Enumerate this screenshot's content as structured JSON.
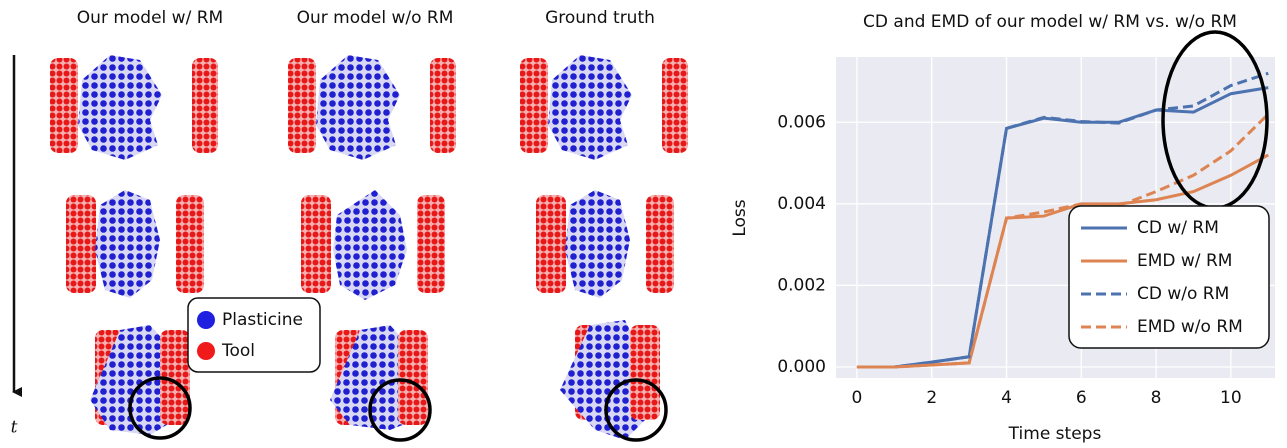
{
  "figure": {
    "columns": [
      "Our model w/ RM",
      "Our model w/o RM",
      "Ground truth"
    ],
    "legend": [
      {
        "name": "Plasticine",
        "color": "#1f1fe0"
      },
      {
        "name": "Tool",
        "color": "#f01a1a"
      }
    ],
    "time_label": "t"
  },
  "chart_data": {
    "type": "line",
    "title": "CD and EMD of our model w/ RM vs. w/o RM",
    "x_label": "Time steps",
    "y_label": "Loss",
    "x": [
      0,
      1,
      2,
      3,
      4,
      5,
      6,
      7,
      8,
      9,
      10,
      11
    ],
    "series": [
      {
        "name": "CD w/ RM",
        "color": "#4c72b0",
        "dashed": false,
        "values": [
          0,
          0,
          0.00012,
          0.00025,
          0.00585,
          0.0061,
          0.006,
          0.006,
          0.0063,
          0.00625,
          0.0067,
          0.00685
        ]
      },
      {
        "name": "EMD w/ RM",
        "color": "#dd8452",
        "dashed": false,
        "values": [
          0,
          0,
          5e-05,
          0.0001,
          0.00365,
          0.0037,
          0.004,
          0.004,
          0.0041,
          0.0043,
          0.0047,
          0.0052
        ]
      },
      {
        "name": "CD w/o RM",
        "color": "#4c72b0",
        "dashed": true,
        "values": [
          0,
          0,
          0.00012,
          0.00025,
          0.00585,
          0.00612,
          0.00602,
          0.00598,
          0.0063,
          0.0064,
          0.0069,
          0.0072
        ]
      },
      {
        "name": "EMD w/o RM",
        "color": "#dd8452",
        "dashed": true,
        "values": [
          0,
          0,
          5e-05,
          0.0001,
          0.00365,
          0.0038,
          0.004,
          0.00395,
          0.0043,
          0.0047,
          0.0053,
          0.0062
        ]
      }
    ],
    "xlim": [
      -0.56,
      11.18
    ],
    "ylim": [
      -0.00027,
      0.0076
    ],
    "xticks": [
      0,
      2,
      4,
      6,
      8,
      10
    ],
    "yticks": [
      {
        "value": 0,
        "label": "0.000"
      },
      {
        "value": 0.002,
        "label": "0.002"
      },
      {
        "value": 0.004,
        "label": "0.004"
      },
      {
        "value": 0.006,
        "label": "0.006"
      }
    ],
    "grid": true,
    "legend_position": "lower right"
  }
}
